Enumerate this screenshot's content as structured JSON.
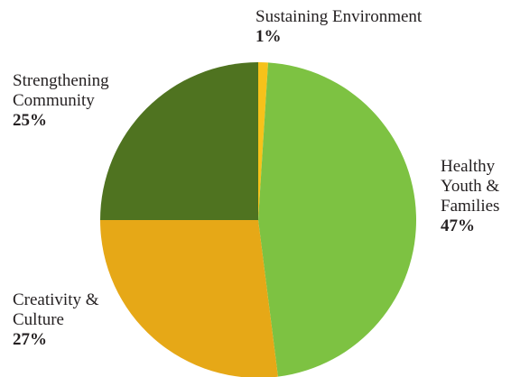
{
  "chart_data": {
    "type": "pie",
    "categories": [
      "Sustaining Environment",
      "Healthy Youth & Families",
      "Creativity & Culture",
      "Strengthening Community"
    ],
    "values": [
      1,
      47,
      27,
      25
    ],
    "value_labels": [
      "1%",
      "47%",
      "27%",
      "25%"
    ],
    "colors": [
      "#f6c21a",
      "#7dc242",
      "#e6a817",
      "#4f7320"
    ]
  }
}
